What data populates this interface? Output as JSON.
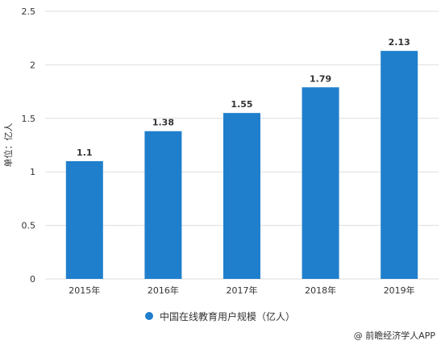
{
  "chart_data": {
    "type": "bar",
    "categories": [
      "2015年",
      "2016年",
      "2017年",
      "2018年",
      "2019年"
    ],
    "series": [
      {
        "name": "中国在线教育用户规模（亿人）",
        "values": [
          1.1,
          1.38,
          1.55,
          1.79,
          2.13
        ],
        "color": "#1f7fcc"
      }
    ],
    "data_labels": [
      "1.1",
      "1.38",
      "1.55",
      "1.79",
      "2.13"
    ],
    "ylabel": "单位：亿人",
    "ylim": [
      0,
      2.5
    ],
    "yticks": [
      "0",
      "0.5",
      "1",
      "1.5",
      "2",
      "2.5"
    ],
    "ytick_values": [
      0,
      0.5,
      1,
      1.5,
      2,
      2.5
    ],
    "grid": true,
    "legend_position": "bottom-center",
    "gridline_color": "#dddddd"
  },
  "source": "@ 前瞻经济学人APP"
}
